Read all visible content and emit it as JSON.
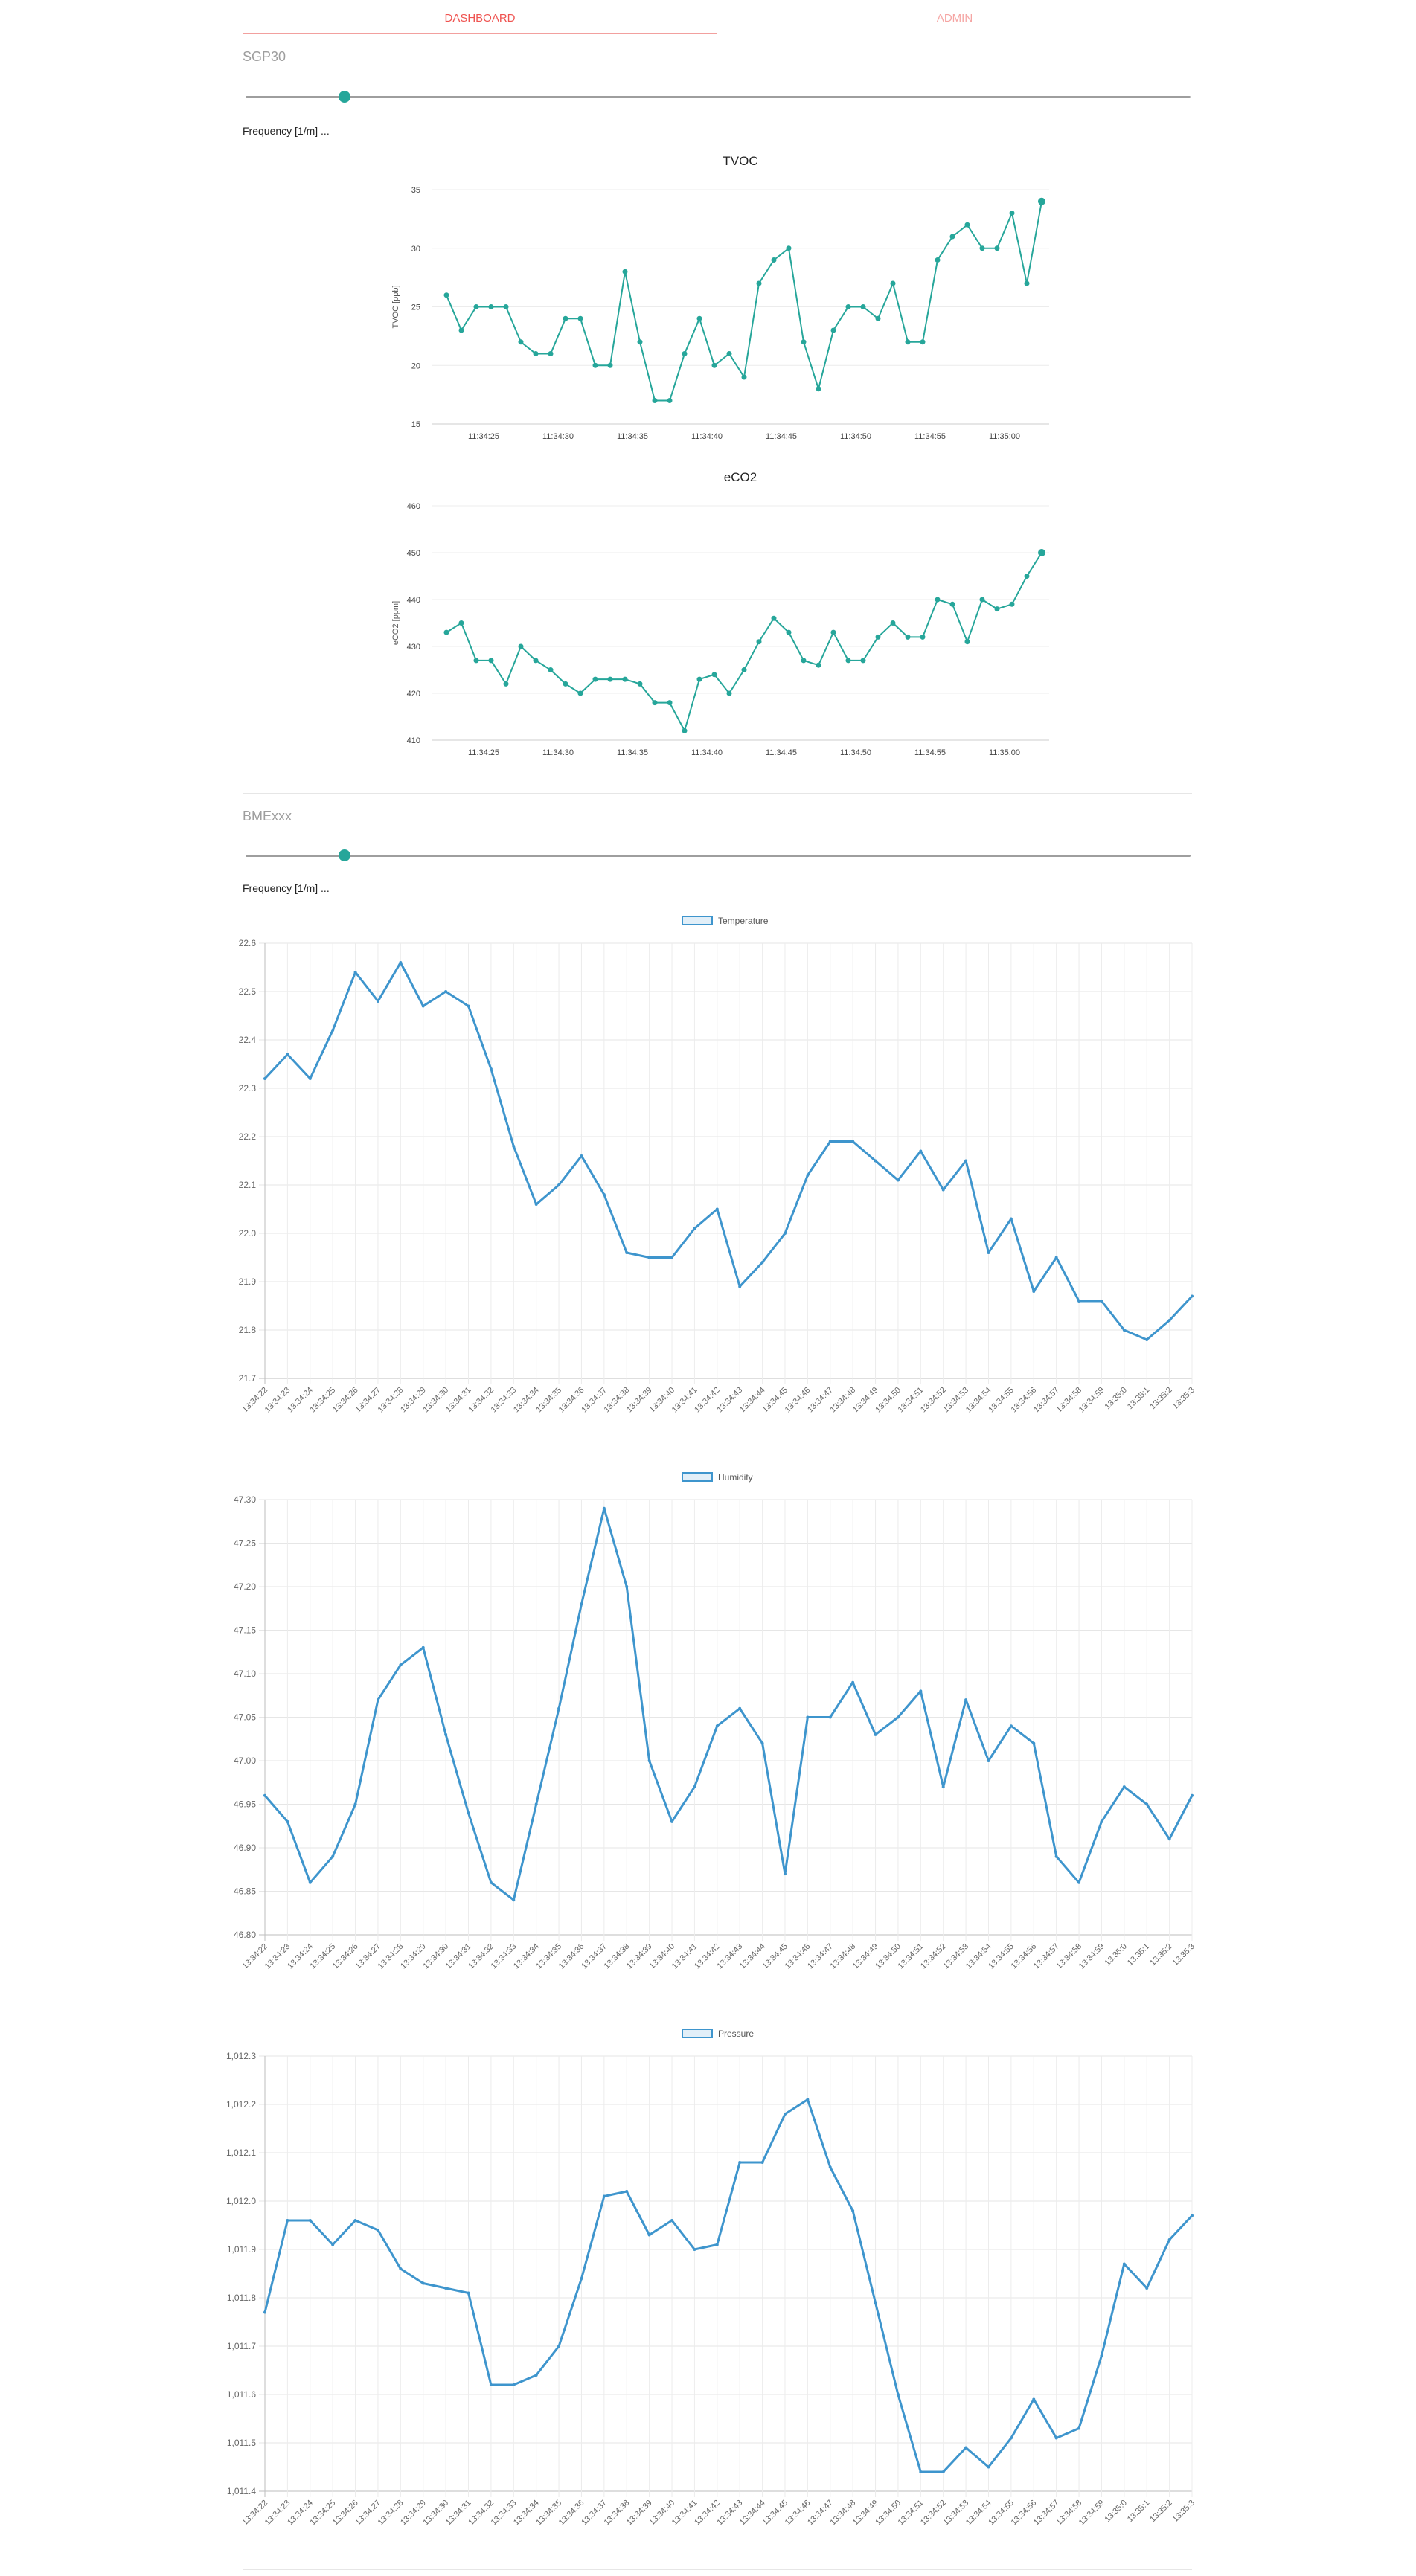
{
  "tabs": {
    "dashboard": "DASHBOARD",
    "admin": "ADMIN"
  },
  "sgp30": {
    "title": "SGP30",
    "frequency_label": "Frequency [1/m] ...",
    "slider_value_fraction": 0.105
  },
  "bme": {
    "title": "BMExxx",
    "frequency_label": "Frequency [1/m] ...",
    "slider_value_fraction": 0.105
  },
  "colors": {
    "accent": "#26a69a",
    "tab_active": "#ef5350",
    "tab_inactive": "#f5a5a3",
    "chartjs_line": "#3e95cd"
  },
  "chart_data": [
    {
      "id": "tvoc",
      "type": "line",
      "title": "TVOC",
      "xlabel": "",
      "ylabel": "TVOC [ppb]",
      "ylim": [
        15,
        35
      ],
      "yticks": [
        "15",
        "20",
        "25",
        "30",
        "35"
      ],
      "xlim": [
        21.5,
        63
      ],
      "xticks": [
        {
          "v": 25,
          "label": "11:34:25"
        },
        {
          "v": 30,
          "label": "11:34:30"
        },
        {
          "v": 35,
          "label": "11:34:35"
        },
        {
          "v": 40,
          "label": "11:34:40"
        },
        {
          "v": 45,
          "label": "11:34:45"
        },
        {
          "v": 50,
          "label": "11:34:50"
        },
        {
          "v": 55,
          "label": "11:34:55"
        },
        {
          "v": 60,
          "label": "11:35:00"
        }
      ],
      "grid": true,
      "points": [
        [
          22.5,
          26
        ],
        [
          23.5,
          23
        ],
        [
          24.5,
          25
        ],
        [
          25.5,
          25
        ],
        [
          26.5,
          25
        ],
        [
          27.5,
          22
        ],
        [
          28.5,
          21
        ],
        [
          29.5,
          21
        ],
        [
          30.5,
          24
        ],
        [
          31.5,
          24
        ],
        [
          32.5,
          20
        ],
        [
          33.5,
          20
        ],
        [
          34.5,
          28
        ],
        [
          35.5,
          22
        ],
        [
          36.5,
          17
        ],
        [
          37.5,
          17
        ],
        [
          38.5,
          21
        ],
        [
          39.5,
          24
        ],
        [
          40.5,
          20
        ],
        [
          41.5,
          21
        ],
        [
          42.5,
          19
        ],
        [
          43.5,
          27
        ],
        [
          44.5,
          29
        ],
        [
          45.5,
          30
        ],
        [
          46.5,
          22
        ],
        [
          47.5,
          18
        ],
        [
          48.5,
          23
        ],
        [
          49.5,
          25
        ],
        [
          50.5,
          25
        ],
        [
          51.5,
          24
        ],
        [
          52.5,
          27
        ],
        [
          53.5,
          22
        ],
        [
          54.5,
          22
        ],
        [
          55.5,
          29
        ],
        [
          56.5,
          31
        ],
        [
          57.5,
          32
        ],
        [
          58.5,
          30
        ],
        [
          59.5,
          30
        ],
        [
          60.5,
          33
        ],
        [
          61.5,
          27
        ],
        [
          62.5,
          34
        ]
      ]
    },
    {
      "id": "eco2",
      "type": "line",
      "title": "eCO2",
      "xlabel": "",
      "ylabel": "eCO2 [ppm]",
      "ylim": [
        410,
        460
      ],
      "yticks": [
        "410",
        "420",
        "430",
        "440",
        "450",
        "460"
      ],
      "xlim": [
        21.5,
        63
      ],
      "xticks": [
        {
          "v": 25,
          "label": "11:34:25"
        },
        {
          "v": 30,
          "label": "11:34:30"
        },
        {
          "v": 35,
          "label": "11:34:35"
        },
        {
          "v": 40,
          "label": "11:34:40"
        },
        {
          "v": 45,
          "label": "11:34:45"
        },
        {
          "v": 50,
          "label": "11:34:50"
        },
        {
          "v": 55,
          "label": "11:34:55"
        },
        {
          "v": 60,
          "label": "11:35:00"
        }
      ],
      "grid": true,
      "points": [
        [
          22.5,
          433
        ],
        [
          23.5,
          435
        ],
        [
          24.5,
          427
        ],
        [
          25.5,
          427
        ],
        [
          26.5,
          422
        ],
        [
          27.5,
          430
        ],
        [
          28.5,
          427
        ],
        [
          29.5,
          425
        ],
        [
          30.5,
          422
        ],
        [
          31.5,
          420
        ],
        [
          32.5,
          423
        ],
        [
          33.5,
          423
        ],
        [
          34.5,
          423
        ],
        [
          35.5,
          422
        ],
        [
          36.5,
          418
        ],
        [
          37.5,
          418
        ],
        [
          38.5,
          412
        ],
        [
          39.5,
          423
        ],
        [
          40.5,
          424
        ],
        [
          41.5,
          420
        ],
        [
          42.5,
          425
        ],
        [
          43.5,
          431
        ],
        [
          44.5,
          436
        ],
        [
          45.5,
          433
        ],
        [
          46.5,
          427
        ],
        [
          47.5,
          426
        ],
        [
          48.5,
          433
        ],
        [
          49.5,
          427
        ],
        [
          50.5,
          427
        ],
        [
          51.5,
          432
        ],
        [
          52.5,
          435
        ],
        [
          53.5,
          432
        ],
        [
          54.5,
          432
        ],
        [
          55.5,
          440
        ],
        [
          56.5,
          439
        ],
        [
          57.5,
          431
        ],
        [
          58.5,
          440
        ],
        [
          59.5,
          438
        ],
        [
          60.5,
          439
        ],
        [
          61.5,
          445
        ],
        [
          62.5,
          450
        ]
      ]
    },
    {
      "id": "temperature",
      "type": "line",
      "title": "",
      "legend": "Temperature",
      "legend_position": "top",
      "ylim": [
        21.7,
        22.6
      ],
      "yticks": [
        "21.7",
        "21.8",
        "21.9",
        "22.0",
        "22.1",
        "22.2",
        "22.3",
        "22.4",
        "22.5",
        "22.6"
      ],
      "categories": [
        "13:34:22",
        "13:34:23",
        "13:34:24",
        "13:34:25",
        "13:34:26",
        "13:34:27",
        "13:34:28",
        "13:34:29",
        "13:34:30",
        "13:34:31",
        "13:34:32",
        "13:34:33",
        "13:34:34",
        "13:34:35",
        "13:34:36",
        "13:34:37",
        "13:34:38",
        "13:34:39",
        "13:34:40",
        "13:34:41",
        "13:34:42",
        "13:34:43",
        "13:34:44",
        "13:34:45",
        "13:34:46",
        "13:34:47",
        "13:34:48",
        "13:34:49",
        "13:34:50",
        "13:34:51",
        "13:34:52",
        "13:34:53",
        "13:34:54",
        "13:34:55",
        "13:34:56",
        "13:34:57",
        "13:34:58",
        "13:34:59",
        "13:35:0",
        "13:35:1",
        "13:35:2",
        "13:35:3"
      ],
      "values": [
        22.32,
        22.37,
        22.32,
        22.42,
        22.54,
        22.48,
        22.56,
        22.47,
        22.5,
        22.47,
        22.34,
        22.18,
        22.06,
        22.1,
        22.16,
        22.08,
        21.96,
        21.95,
        21.95,
        22.01,
        22.05,
        21.89,
        21.94,
        22.0,
        22.12,
        22.19,
        22.19,
        22.15,
        22.11,
        22.17,
        22.09,
        22.15,
        21.96,
        22.03,
        21.88,
        21.95,
        21.86,
        21.86,
        21.8,
        21.78,
        21.82,
        21.87
      ],
      "grid": true
    },
    {
      "id": "humidity",
      "type": "line",
      "title": "",
      "legend": "Humidity",
      "legend_position": "top",
      "ylim": [
        46.8,
        47.3
      ],
      "yticks": [
        "46.80",
        "46.85",
        "46.90",
        "46.95",
        "47.00",
        "47.05",
        "47.10",
        "47.15",
        "47.20",
        "47.25",
        "47.30"
      ],
      "categories": [
        "13:34:22",
        "13:34:23",
        "13:34:24",
        "13:34:25",
        "13:34:26",
        "13:34:27",
        "13:34:28",
        "13:34:29",
        "13:34:30",
        "13:34:31",
        "13:34:32",
        "13:34:33",
        "13:34:34",
        "13:34:35",
        "13:34:36",
        "13:34:37",
        "13:34:38",
        "13:34:39",
        "13:34:40",
        "13:34:41",
        "13:34:42",
        "13:34:43",
        "13:34:44",
        "13:34:45",
        "13:34:46",
        "13:34:47",
        "13:34:48",
        "13:34:49",
        "13:34:50",
        "13:34:51",
        "13:34:52",
        "13:34:53",
        "13:34:54",
        "13:34:55",
        "13:34:56",
        "13:34:57",
        "13:34:58",
        "13:34:59",
        "13:35:0",
        "13:35:1",
        "13:35:2",
        "13:35:3"
      ],
      "values": [
        46.96,
        46.93,
        46.86,
        46.89,
        46.95,
        47.07,
        47.11,
        47.13,
        47.03,
        46.94,
        46.86,
        46.84,
        46.95,
        47.06,
        47.18,
        47.29,
        47.2,
        47.0,
        46.93,
        46.97,
        47.04,
        47.06,
        47.02,
        46.87,
        47.05,
        47.05,
        47.09,
        47.03,
        47.05,
        47.08,
        46.97,
        47.07,
        47.0,
        47.04,
        47.02,
        46.89,
        46.86,
        46.93,
        46.97,
        46.95,
        46.91,
        46.96
      ],
      "grid": true
    },
    {
      "id": "pressure",
      "type": "line",
      "title": "",
      "legend": "Pressure",
      "legend_position": "top",
      "ylim": [
        1011.4,
        1012.3
      ],
      "yticks": [
        "1,011.4",
        "1,011.5",
        "1,011.6",
        "1,011.7",
        "1,011.8",
        "1,011.9",
        "1,012.0",
        "1,012.1",
        "1,012.2",
        "1,012.3"
      ],
      "categories": [
        "13:34:22",
        "13:34:23",
        "13:34:24",
        "13:34:25",
        "13:34:26",
        "13:34:27",
        "13:34:28",
        "13:34:29",
        "13:34:30",
        "13:34:31",
        "13:34:32",
        "13:34:33",
        "13:34:34",
        "13:34:35",
        "13:34:36",
        "13:34:37",
        "13:34:38",
        "13:34:39",
        "13:34:40",
        "13:34:41",
        "13:34:42",
        "13:34:43",
        "13:34:44",
        "13:34:45",
        "13:34:46",
        "13:34:47",
        "13:34:48",
        "13:34:49",
        "13:34:50",
        "13:34:51",
        "13:34:52",
        "13:34:53",
        "13:34:54",
        "13:34:55",
        "13:34:56",
        "13:34:57",
        "13:34:58",
        "13:34:59",
        "13:35:0",
        "13:35:1",
        "13:35:2",
        "13:35:3"
      ],
      "values": [
        1011.77,
        1011.96,
        1011.96,
        1011.91,
        1011.96,
        1011.94,
        1011.86,
        1011.83,
        1011.82,
        1011.81,
        1011.62,
        1011.62,
        1011.64,
        1011.7,
        1011.84,
        1012.01,
        1012.02,
        1011.93,
        1011.96,
        1011.9,
        1011.91,
        1012.08,
        1012.08,
        1012.18,
        1012.21,
        1012.07,
        1011.98,
        1011.79,
        1011.6,
        1011.44,
        1011.44,
        1011.49,
        1011.45,
        1011.51,
        1011.59,
        1011.51,
        1011.53,
        1011.68,
        1011.87,
        1011.82,
        1011.92,
        1011.97
      ],
      "grid": true
    }
  ]
}
